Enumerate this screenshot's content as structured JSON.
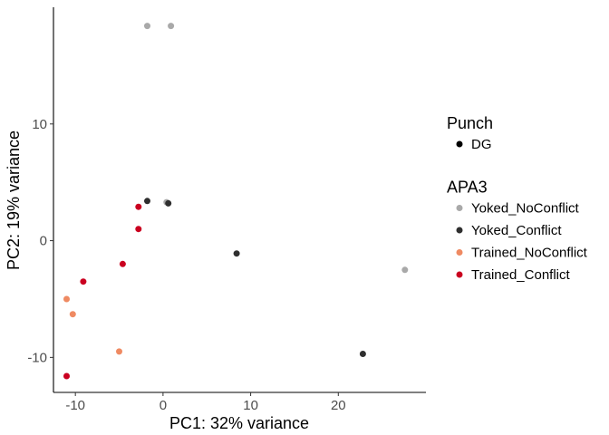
{
  "chart_data": {
    "type": "scatter",
    "xlabel": "PC1: 32% variance",
    "ylabel": "PC2: 19% variance",
    "xlim": [
      -12.5,
      30
    ],
    "ylim": [
      -13,
      20
    ],
    "x_ticks": [
      -10,
      0,
      10,
      20
    ],
    "y_ticks": [
      -10,
      0,
      10
    ],
    "grid": false,
    "legend_position": "right",
    "legends": [
      {
        "title": "Punch",
        "entries": [
          {
            "label": "DG",
            "color": "#000000"
          }
        ]
      },
      {
        "title": "APA3",
        "entries": [
          {
            "label": "Yoked_NoConflict",
            "color": "#a9a9a9"
          },
          {
            "label": "Yoked_Conflict",
            "color": "#2f2f2f"
          },
          {
            "label": "Trained_NoConflict",
            "color": "#ef8a62"
          },
          {
            "label": "Trained_Conflict",
            "color": "#ca0020"
          }
        ]
      }
    ],
    "series": [
      {
        "name": "Yoked_NoConflict",
        "color": "#a9a9a9",
        "points": [
          {
            "x": -1.8,
            "y": 18.4
          },
          {
            "x": 0.9,
            "y": 18.4
          },
          {
            "x": 27.6,
            "y": -2.5
          },
          {
            "x": 0.4,
            "y": 3.3
          }
        ]
      },
      {
        "name": "Yoked_Conflict",
        "color": "#2f2f2f",
        "points": [
          {
            "x": -1.8,
            "y": 3.4
          },
          {
            "x": 0.6,
            "y": 3.2
          },
          {
            "x": 8.4,
            "y": -1.1
          },
          {
            "x": 22.8,
            "y": -9.7
          }
        ]
      },
      {
        "name": "Trained_NoConflict",
        "color": "#ef8a62",
        "points": [
          {
            "x": -11.0,
            "y": -5.0
          },
          {
            "x": -10.3,
            "y": -6.3
          },
          {
            "x": -5.0,
            "y": -9.5
          }
        ]
      },
      {
        "name": "Trained_Conflict",
        "color": "#ca0020",
        "points": [
          {
            "x": -2.8,
            "y": 2.9
          },
          {
            "x": -2.8,
            "y": 1.0
          },
          {
            "x": -4.6,
            "y": -2.0
          },
          {
            "x": -9.1,
            "y": -3.5
          },
          {
            "x": -11.0,
            "y": -11.6
          }
        ]
      }
    ]
  }
}
